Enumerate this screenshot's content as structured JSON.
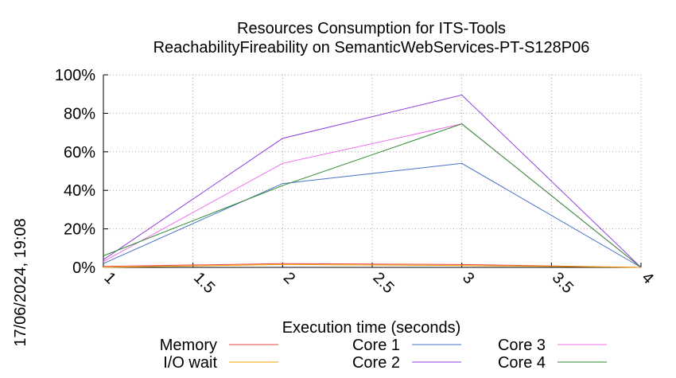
{
  "chart_data": {
    "type": "line",
    "title": "Resources Consumption for ITS-Tools",
    "subtitle": "ReachabilityFireability on SemanticWebServices-PT-S128P06",
    "xlabel": "Execution time (seconds)",
    "ylabel": "",
    "side_label": "17/06/2024, 19:08",
    "xlim": [
      1,
      4
    ],
    "ylim": [
      0,
      100
    ],
    "x_ticks": [
      1,
      1.5,
      2,
      2.5,
      3,
      3.5,
      4
    ],
    "x_tick_labels": [
      "1",
      "1.5",
      "2",
      "2.5",
      "3",
      "3.5",
      "4"
    ],
    "y_ticks": [
      0,
      20,
      40,
      60,
      80,
      100
    ],
    "y_tick_labels": [
      "0%",
      "20%",
      "40%",
      "60%",
      "80%",
      "100%"
    ],
    "grid": true,
    "legend_position": "bottom",
    "x": [
      1,
      2,
      3,
      4
    ],
    "series": [
      {
        "name": "Memory",
        "color": "#e8453c",
        "values": [
          0.5,
          2,
          1.5,
          0
        ]
      },
      {
        "name": "I/O wait",
        "color": "#f0a000",
        "values": [
          0,
          1.5,
          1,
          0
        ]
      },
      {
        "name": "Core 1",
        "color": "#4a70c8",
        "values": [
          2,
          43.5,
          54,
          0
        ]
      },
      {
        "name": "Core 2",
        "color": "#9040e0",
        "values": [
          4,
          67,
          89.5,
          0
        ]
      },
      {
        "name": "Core 3",
        "color": "#f070f0",
        "values": [
          3,
          54,
          74.5,
          0
        ]
      },
      {
        "name": "Core 4",
        "color": "#2a8a2a",
        "values": [
          6,
          42.5,
          74.5,
          0
        ]
      }
    ]
  }
}
